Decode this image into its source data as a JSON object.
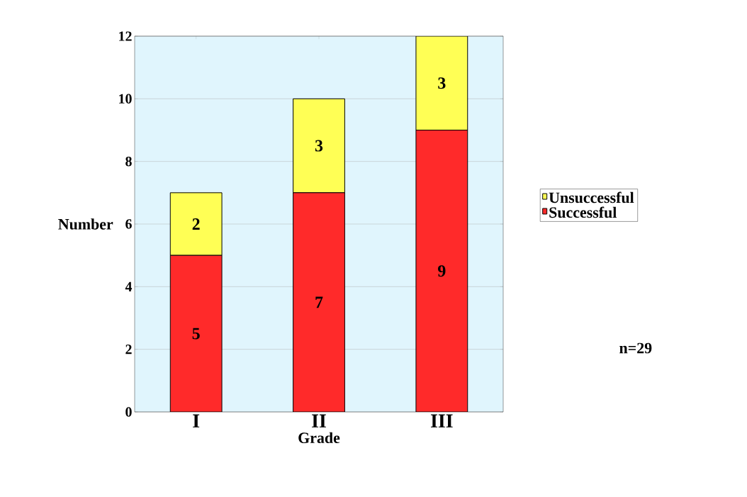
{
  "chart_data": {
    "type": "bar",
    "stacked": true,
    "xlabel": "Grade",
    "ylabel": "Number",
    "categories": [
      "I",
      "II",
      "III"
    ],
    "series": [
      {
        "name": "Successful",
        "color": "#ff2a2a",
        "values": [
          5,
          7,
          9
        ]
      },
      {
        "name": "Unsuccessful",
        "color": "#ffff55",
        "values": [
          2,
          3,
          3
        ]
      }
    ],
    "ylim": [
      0,
      12
    ],
    "yticks": [
      0,
      2,
      4,
      6,
      8,
      10,
      12
    ],
    "grid": "y",
    "legend": "right",
    "data_labels": true,
    "annotations": [
      "n=29"
    ]
  }
}
